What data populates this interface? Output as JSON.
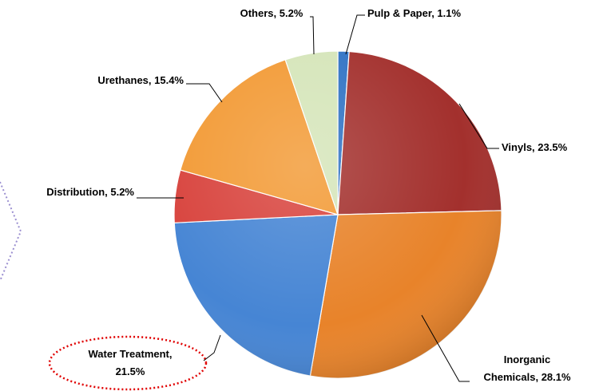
{
  "chart_data": {
    "type": "pie",
    "values": [
      1.1,
      23.5,
      28.1,
      21.5,
      5.2,
      15.4,
      5.2
    ],
    "value_labels": [
      "Pulp & Paper, 1.1%",
      "Vinyls, 23.5%",
      "Inorganic\nChemicals, 28.1%",
      "Water Treatment,\n21.5%",
      "Distribution, 5.2%",
      "Urethanes, 15.4%",
      "Others, 5.2%"
    ],
    "colors": [
      "#2f72c4",
      "#a3302d",
      "#e8832a",
      "#4685d4",
      "#d8433d",
      "#f29a35",
      "#d5e5b9"
    ]
  }
}
